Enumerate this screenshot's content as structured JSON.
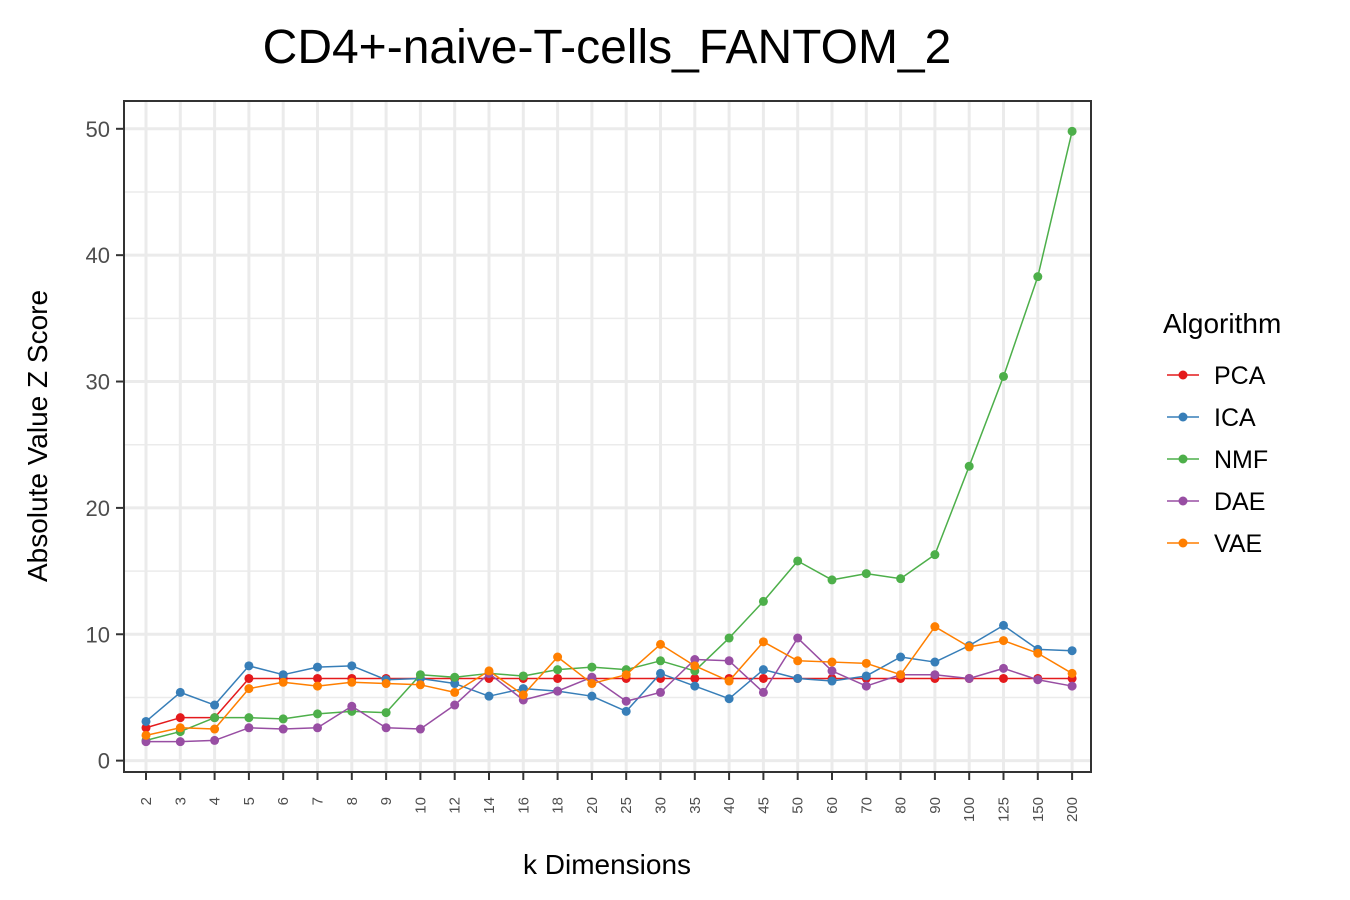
{
  "chart_data": {
    "type": "line",
    "title": "CD4+-naive-T-cells_FANTOM_2",
    "xlabel": "k Dimensions",
    "ylabel": "Absolute Value Z Score",
    "categories": [
      "2",
      "3",
      "4",
      "5",
      "6",
      "7",
      "8",
      "9",
      "10",
      "12",
      "14",
      "16",
      "18",
      "20",
      "25",
      "30",
      "35",
      "40",
      "45",
      "50",
      "60",
      "70",
      "80",
      "90",
      "100",
      "125",
      "150",
      "200"
    ],
    "yticks": [
      0,
      10,
      20,
      30,
      40,
      50
    ],
    "ylim": [
      -0.9,
      52.2
    ],
    "grid": true,
    "legend": {
      "title": "Algorithm",
      "position": "right"
    },
    "series": [
      {
        "name": "PCA",
        "color": "#e41a1c",
        "values": [
          2.6,
          3.4,
          3.4,
          6.5,
          6.5,
          6.5,
          6.5,
          6.5,
          6.5,
          6.5,
          6.5,
          6.5,
          6.5,
          6.5,
          6.5,
          6.5,
          6.5,
          6.5,
          6.5,
          6.5,
          6.5,
          6.5,
          6.5,
          6.5,
          6.5,
          6.5,
          6.5,
          6.5
        ]
      },
      {
        "name": "ICA",
        "color": "#377eb8",
        "values": [
          3.1,
          5.4,
          4.4,
          7.5,
          6.8,
          7.4,
          7.5,
          6.4,
          6.5,
          6.1,
          5.1,
          5.7,
          5.5,
          5.1,
          3.9,
          6.9,
          5.9,
          4.9,
          7.2,
          6.5,
          6.3,
          6.7,
          8.2,
          7.8,
          9.1,
          10.7,
          8.8,
          8.7
        ]
      },
      {
        "name": "NMF",
        "color": "#4daf4a",
        "values": [
          1.6,
          2.3,
          3.4,
          3.4,
          3.3,
          3.7,
          3.9,
          3.8,
          6.8,
          6.6,
          6.9,
          6.7,
          7.2,
          7.4,
          7.2,
          7.9,
          7.1,
          9.7,
          12.6,
          15.8,
          14.3,
          14.8,
          14.4,
          16.3,
          23.3,
          30.4,
          38.3,
          49.8
        ]
      },
      {
        "name": "DAE",
        "color": "#984ea3",
        "values": [
          1.5,
          1.5,
          1.6,
          2.6,
          2.5,
          2.6,
          4.3,
          2.6,
          2.5,
          4.4,
          6.9,
          4.8,
          5.5,
          6.6,
          4.7,
          5.4,
          8.0,
          7.9,
          5.4,
          9.7,
          7.1,
          5.9,
          6.8,
          6.8,
          6.5,
          7.3,
          6.4,
          5.9
        ]
      },
      {
        "name": "VAE",
        "color": "#ff7f00",
        "values": [
          2.0,
          2.6,
          2.5,
          5.7,
          6.2,
          5.9,
          6.2,
          6.1,
          6.0,
          5.4,
          7.1,
          5.2,
          8.2,
          6.1,
          6.8,
          9.2,
          7.5,
          6.3,
          9.4,
          7.9,
          7.8,
          7.7,
          6.8,
          10.6,
          9.0,
          9.5,
          8.5,
          6.9
        ]
      }
    ]
  }
}
